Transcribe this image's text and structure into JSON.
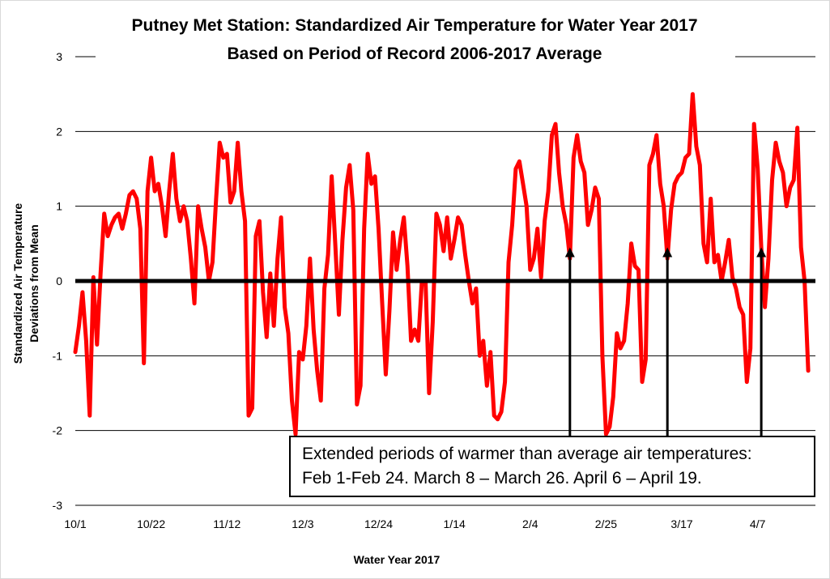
{
  "chart_data": {
    "type": "line",
    "title": [
      "Putney Met Station: Standardized Air Temperature for Water Year 2017",
      "Based on Period of Record 2006-2017 Average"
    ],
    "xlabel": "Water Year 2017",
    "ylabel": [
      "Standardized Air Temperature",
      "Deviations from Mean"
    ],
    "ylim": [
      -3,
      3
    ],
    "yticks": [
      "3",
      "2",
      "1",
      "0",
      "-1",
      "-2",
      "-3"
    ],
    "xtick_labels": [
      "10/1",
      "10/22",
      "11/12",
      "12/3",
      "12/24",
      "1/14",
      "2/4",
      "2/25",
      "3/17",
      "4/7"
    ],
    "x_day_range": [
      0,
      205
    ],
    "series": [
      {
        "name": "Standardized Air Temperature Deviation",
        "color": "#ff0000",
        "points": [
          [
            0,
            -0.95
          ],
          [
            1,
            -0.6
          ],
          [
            2,
            -0.15
          ],
          [
            3,
            -0.8
          ],
          [
            4,
            -1.8
          ],
          [
            5,
            0.05
          ],
          [
            6,
            -0.85
          ],
          [
            7,
            0.1
          ],
          [
            8,
            0.9
          ],
          [
            9,
            0.6
          ],
          [
            10,
            0.75
          ],
          [
            11,
            0.85
          ],
          [
            12,
            0.9
          ],
          [
            13,
            0.7
          ],
          [
            14,
            0.9
          ],
          [
            15,
            1.15
          ],
          [
            16,
            1.2
          ],
          [
            17,
            1.1
          ],
          [
            18,
            0.7
          ],
          [
            19,
            -1.1
          ],
          [
            20,
            1.2
          ],
          [
            21,
            1.65
          ],
          [
            22,
            1.2
          ],
          [
            23,
            1.3
          ],
          [
            24,
            1.0
          ],
          [
            25,
            0.6
          ],
          [
            26,
            1.2
          ],
          [
            27,
            1.7
          ],
          [
            28,
            1.1
          ],
          [
            29,
            0.8
          ],
          [
            30,
            1.0
          ],
          [
            31,
            0.8
          ],
          [
            32,
            0.3
          ],
          [
            33,
            -0.3
          ],
          [
            34,
            1.0
          ],
          [
            35,
            0.7
          ],
          [
            36,
            0.45
          ],
          [
            37,
            0.0
          ],
          [
            38,
            0.25
          ],
          [
            39,
            1.1
          ],
          [
            40,
            1.85
          ],
          [
            41,
            1.65
          ],
          [
            42,
            1.7
          ],
          [
            43,
            1.05
          ],
          [
            44,
            1.2
          ],
          [
            45,
            1.85
          ],
          [
            46,
            1.2
          ],
          [
            47,
            0.8
          ],
          [
            48,
            -1.8
          ],
          [
            49,
            -1.7
          ],
          [
            50,
            0.6
          ],
          [
            51,
            0.8
          ],
          [
            52,
            -0.15
          ],
          [
            53,
            -0.75
          ],
          [
            54,
            0.1
          ],
          [
            55,
            -0.6
          ],
          [
            56,
            0.3
          ],
          [
            57,
            0.85
          ],
          [
            58,
            -0.35
          ],
          [
            59,
            -0.7
          ],
          [
            60,
            -1.6
          ],
          [
            61,
            -2.05
          ],
          [
            62,
            -0.95
          ],
          [
            63,
            -1.05
          ],
          [
            64,
            -0.6
          ],
          [
            65,
            0.3
          ],
          [
            66,
            -0.65
          ],
          [
            67,
            -1.2
          ],
          [
            68,
            -1.6
          ],
          [
            69,
            -0.1
          ],
          [
            70,
            0.35
          ],
          [
            71,
            1.4
          ],
          [
            72,
            0.5
          ],
          [
            73,
            -0.45
          ],
          [
            74,
            0.55
          ],
          [
            75,
            1.25
          ],
          [
            76,
            1.55
          ],
          [
            77,
            0.95
          ],
          [
            78,
            -1.65
          ],
          [
            79,
            -1.4
          ],
          [
            80,
            0.7
          ],
          [
            81,
            1.7
          ],
          [
            82,
            1.3
          ],
          [
            83,
            1.4
          ],
          [
            84,
            0.7
          ],
          [
            85,
            -0.3
          ],
          [
            86,
            -1.25
          ],
          [
            87,
            -0.4
          ],
          [
            88,
            0.65
          ],
          [
            89,
            0.15
          ],
          [
            90,
            0.55
          ],
          [
            91,
            0.85
          ],
          [
            92,
            0.2
          ],
          [
            93,
            -0.8
          ],
          [
            94,
            -0.65
          ],
          [
            95,
            -0.8
          ],
          [
            96,
            0.0
          ],
          [
            97,
            0.0
          ],
          [
            98,
            -1.5
          ],
          [
            99,
            -0.55
          ],
          [
            100,
            0.9
          ],
          [
            101,
            0.75
          ],
          [
            102,
            0.4
          ],
          [
            103,
            0.85
          ],
          [
            104,
            0.3
          ],
          [
            105,
            0.55
          ],
          [
            106,
            0.85
          ],
          [
            107,
            0.75
          ],
          [
            108,
            0.35
          ],
          [
            109,
            0.0
          ],
          [
            110,
            -0.3
          ],
          [
            111,
            -0.1
          ],
          [
            112,
            -1.0
          ],
          [
            113,
            -0.8
          ],
          [
            114,
            -1.4
          ],
          [
            115,
            -0.95
          ],
          [
            116,
            -1.8
          ],
          [
            117,
            -1.85
          ],
          [
            118,
            -1.75
          ],
          [
            119,
            -1.35
          ],
          [
            120,
            0.25
          ],
          [
            121,
            0.75
          ],
          [
            122,
            1.5
          ],
          [
            123,
            1.6
          ],
          [
            124,
            1.3
          ],
          [
            125,
            1.0
          ],
          [
            126,
            0.15
          ],
          [
            127,
            0.3
          ],
          [
            128,
            0.7
          ],
          [
            129,
            0.05
          ],
          [
            130,
            0.8
          ],
          [
            131,
            1.2
          ],
          [
            132,
            1.95
          ],
          [
            133,
            2.1
          ],
          [
            134,
            1.45
          ],
          [
            135,
            1.0
          ],
          [
            136,
            0.75
          ],
          [
            137,
            0.3
          ],
          [
            138,
            1.65
          ],
          [
            139,
            1.95
          ],
          [
            140,
            1.6
          ],
          [
            141,
            1.45
          ],
          [
            142,
            0.75
          ],
          [
            143,
            0.95
          ],
          [
            144,
            1.25
          ],
          [
            145,
            1.1
          ],
          [
            146,
            -1.0
          ],
          [
            147,
            -2.05
          ],
          [
            148,
            -1.95
          ],
          [
            149,
            -1.55
          ],
          [
            150,
            -0.7
          ],
          [
            151,
            -0.9
          ],
          [
            152,
            -0.8
          ],
          [
            153,
            -0.3
          ],
          [
            154,
            0.5
          ],
          [
            155,
            0.2
          ],
          [
            156,
            0.15
          ],
          [
            157,
            -1.35
          ],
          [
            158,
            -1.05
          ],
          [
            159,
            1.55
          ],
          [
            160,
            1.7
          ],
          [
            161,
            1.95
          ],
          [
            162,
            1.3
          ],
          [
            163,
            1.0
          ],
          [
            164,
            0.3
          ],
          [
            165,
            0.95
          ],
          [
            166,
            1.3
          ],
          [
            167,
            1.4
          ],
          [
            168,
            1.45
          ],
          [
            169,
            1.65
          ],
          [
            170,
            1.7
          ],
          [
            171,
            2.5
          ],
          [
            172,
            1.8
          ],
          [
            173,
            1.55
          ],
          [
            174,
            0.5
          ],
          [
            175,
            0.25
          ],
          [
            176,
            1.1
          ],
          [
            177,
            0.25
          ],
          [
            178,
            0.35
          ],
          [
            179,
            0.0
          ],
          [
            180,
            0.25
          ],
          [
            181,
            0.55
          ],
          [
            182,
            0.05
          ],
          [
            183,
            -0.1
          ],
          [
            184,
            -0.35
          ],
          [
            185,
            -0.45
          ],
          [
            186,
            -1.35
          ],
          [
            187,
            -0.9
          ],
          [
            188,
            2.1
          ],
          [
            189,
            1.5
          ],
          [
            190,
            0.45
          ],
          [
            191,
            -0.35
          ],
          [
            192,
            0.3
          ],
          [
            193,
            1.35
          ],
          [
            194,
            1.85
          ],
          [
            195,
            1.6
          ],
          [
            196,
            1.45
          ],
          [
            197,
            1.0
          ],
          [
            198,
            1.25
          ],
          [
            199,
            1.35
          ],
          [
            200,
            2.05
          ],
          [
            201,
            0.45
          ],
          [
            202,
            0.0
          ],
          [
            203,
            -1.2
          ]
        ]
      }
    ],
    "reference_line": {
      "y": 0,
      "color": "#000000"
    },
    "arrows": [
      {
        "name": "feb-warm-period",
        "x_day": 137,
        "y_from": -2.1,
        "y_to": 0.45
      },
      {
        "name": "march-warm-period",
        "x_day": 164,
        "y_from": -2.1,
        "y_to": 0.45
      },
      {
        "name": "april-warm-period",
        "x_day": 190,
        "y_from": -2.1,
        "y_to": 0.45
      }
    ],
    "annotation": [
      "Extended periods of warmer than average air temperatures:",
      "Feb 1-Feb 24.  March 8 – March 26.  April 6 – April 19."
    ],
    "grid": true,
    "legend": "none"
  }
}
